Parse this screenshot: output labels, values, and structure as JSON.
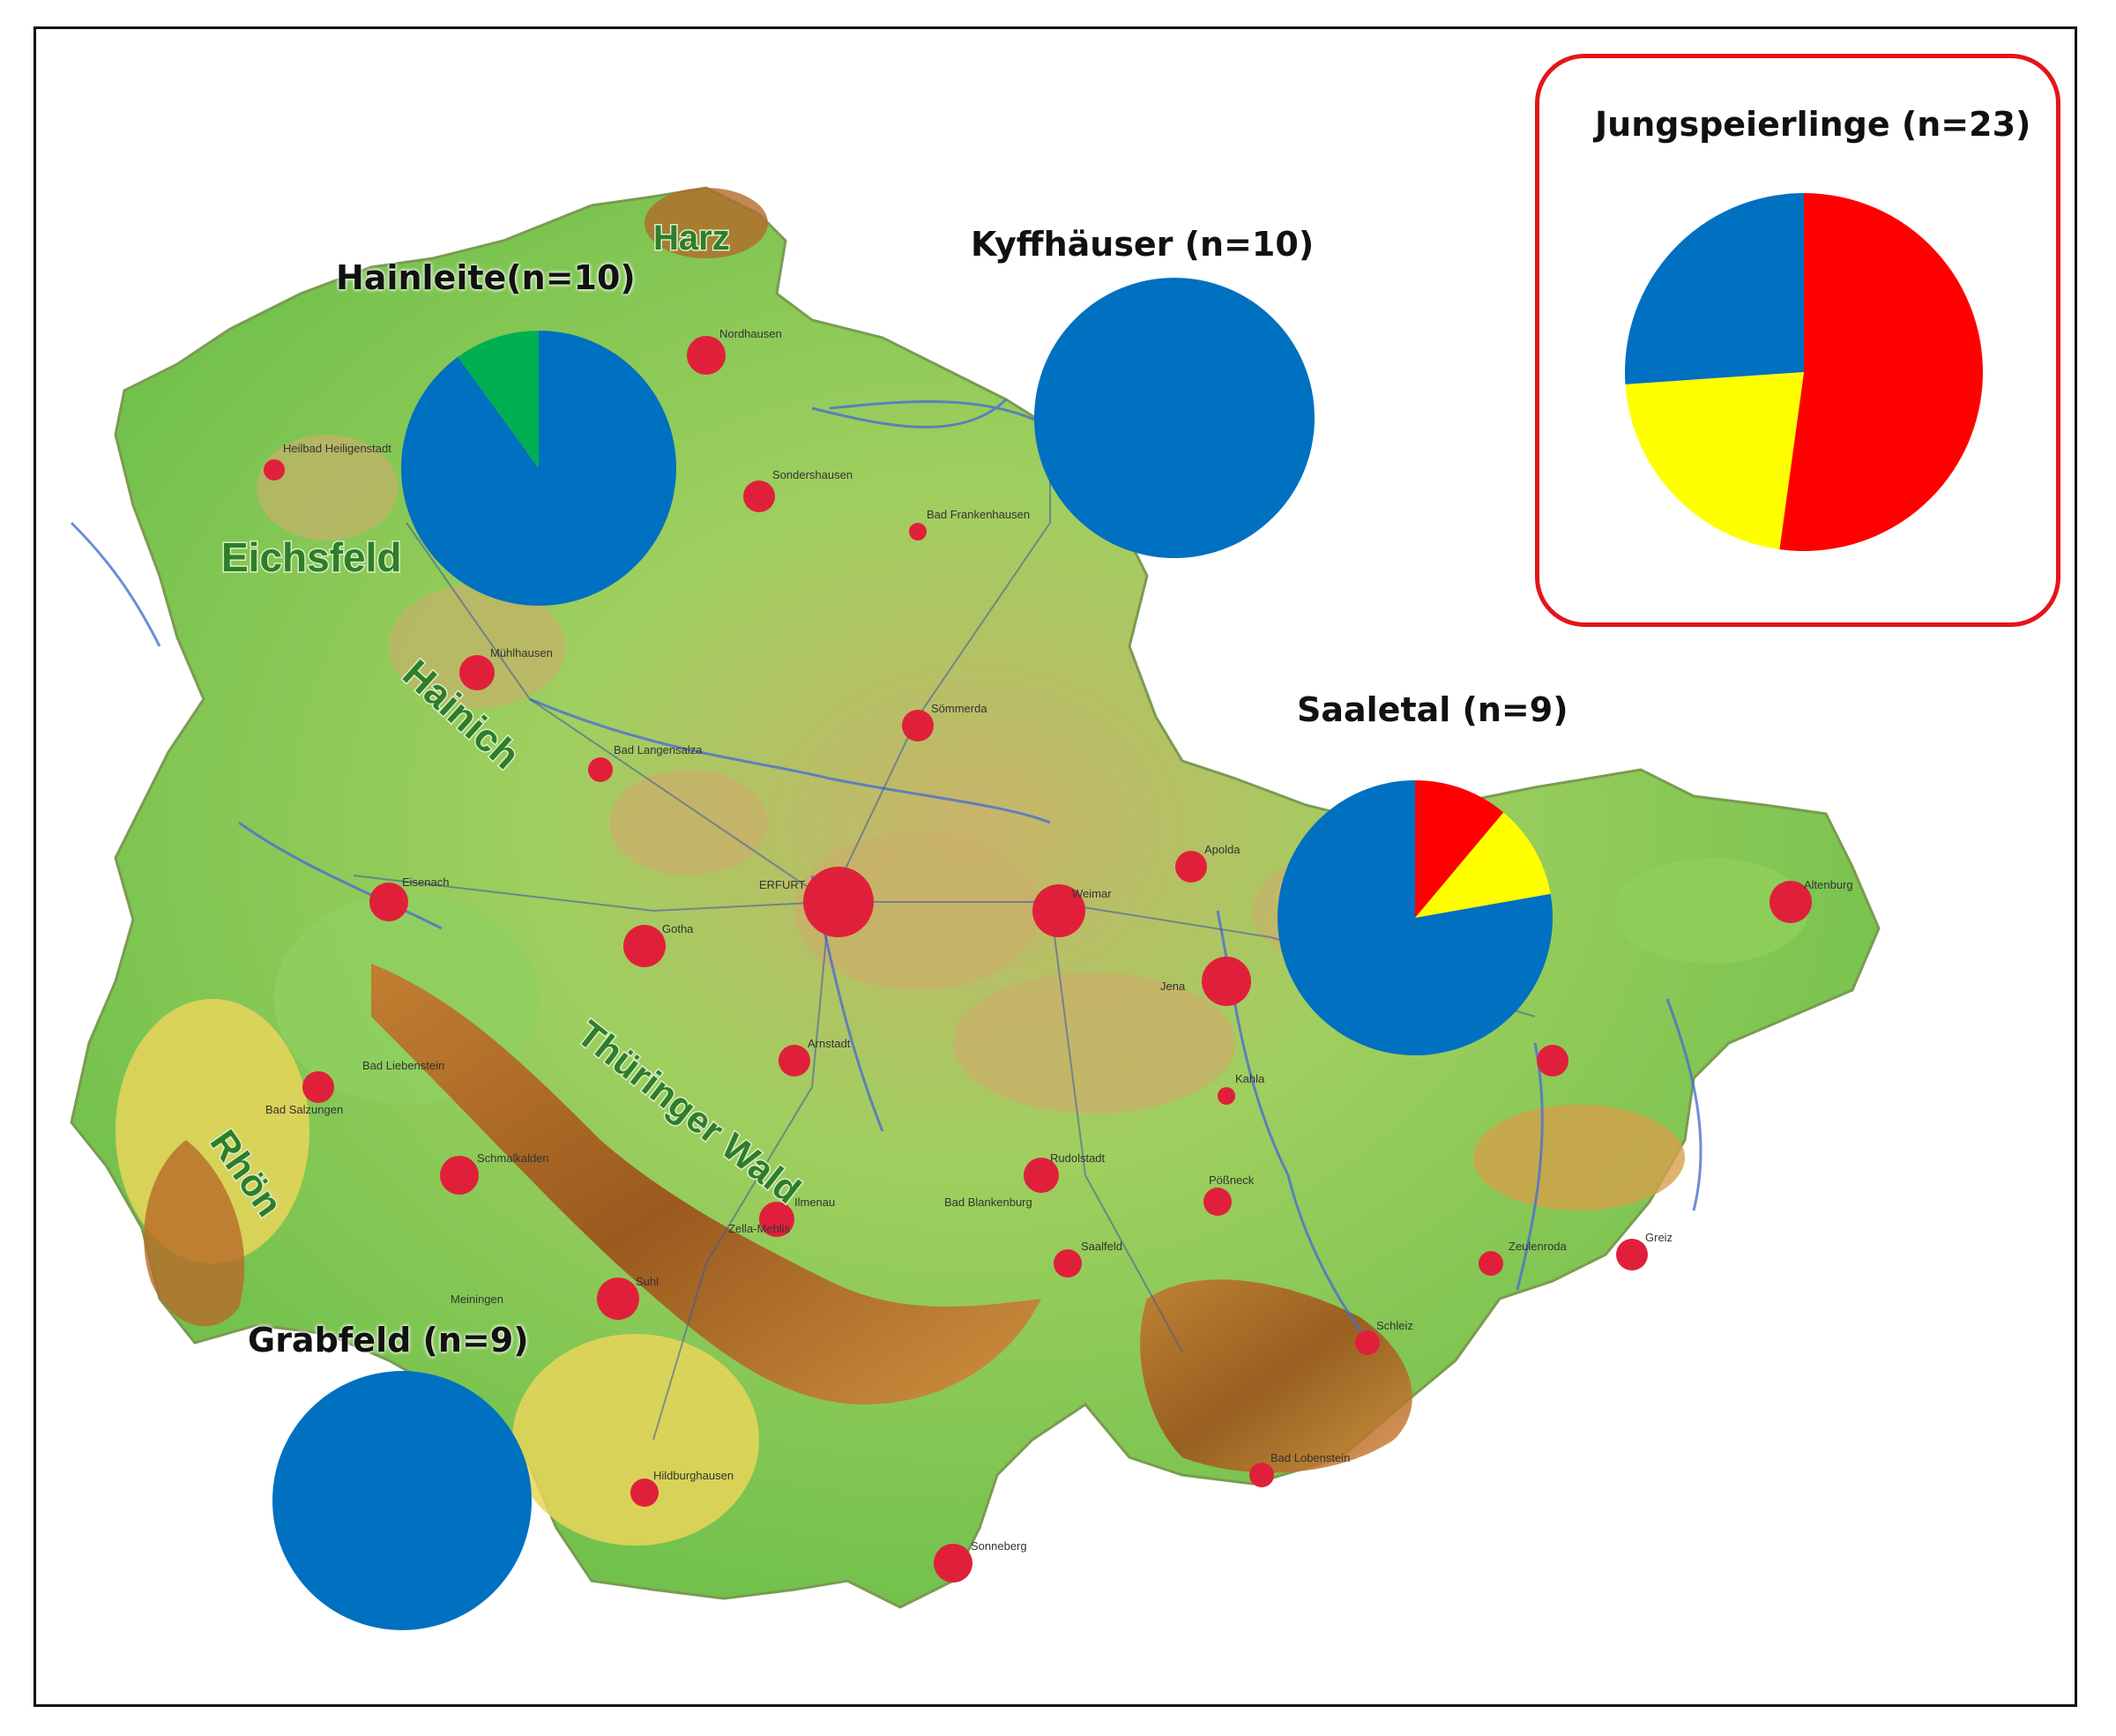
{
  "colors": {
    "red": "#ff0000",
    "yellow": "#ffff00",
    "blue": "#0070c0",
    "green": "#00b050",
    "frame_border": "#e3151a"
  },
  "map": {
    "regions": [
      "Harz",
      "Eichsfeld",
      "Hainich",
      "Thüringer Wald",
      "Rhön"
    ],
    "cities": [
      "Nordhausen",
      "Sondershausen",
      "Bad Frankenhausen",
      "Heilbad Heiligenstadt",
      "Mühlhausen",
      "Sömmerda",
      "Bad Langensalza",
      "Eisenach",
      "Gotha",
      "ERFURT",
      "Weimar",
      "Apolda",
      "Jena",
      "Altenburg",
      "Arnstadt",
      "Kahla",
      "Bad Salzungen",
      "Bad Liebenstein",
      "Schmalkalden",
      "Zella-Mehlis",
      "Suhl",
      "Meiningen",
      "Ilmenau",
      "Bad Blankenburg",
      "Rudolstadt",
      "Pößneck",
      "Saalfeld",
      "Zeulenroda",
      "Greiz",
      "Schleiz",
      "Hildburghausen",
      "Sonneberg",
      "Bad Lobenstein"
    ]
  },
  "chart_data": [
    {
      "type": "pie",
      "title": "Hainleite(n=10)",
      "slices": [
        {
          "color": "blue",
          "value": 9
        },
        {
          "color": "green",
          "value": 1
        }
      ]
    },
    {
      "type": "pie",
      "title": "Kyffhäuser (n=10)",
      "slices": [
        {
          "color": "blue",
          "value": 10
        }
      ]
    },
    {
      "type": "pie",
      "title": "Jungspeierlinge (n=23)",
      "slices": [
        {
          "color": "red",
          "value": 12
        },
        {
          "color": "yellow",
          "value": 5
        },
        {
          "color": "blue",
          "value": 6
        }
      ]
    },
    {
      "type": "pie",
      "title": "Saaletal (n=9)",
      "slices": [
        {
          "color": "red",
          "value": 1
        },
        {
          "color": "yellow",
          "value": 1
        },
        {
          "color": "blue",
          "value": 7
        }
      ]
    },
    {
      "type": "pie",
      "title": "Grabfeld (n=9)",
      "slices": [
        {
          "color": "blue",
          "value": 9
        }
      ]
    }
  ]
}
